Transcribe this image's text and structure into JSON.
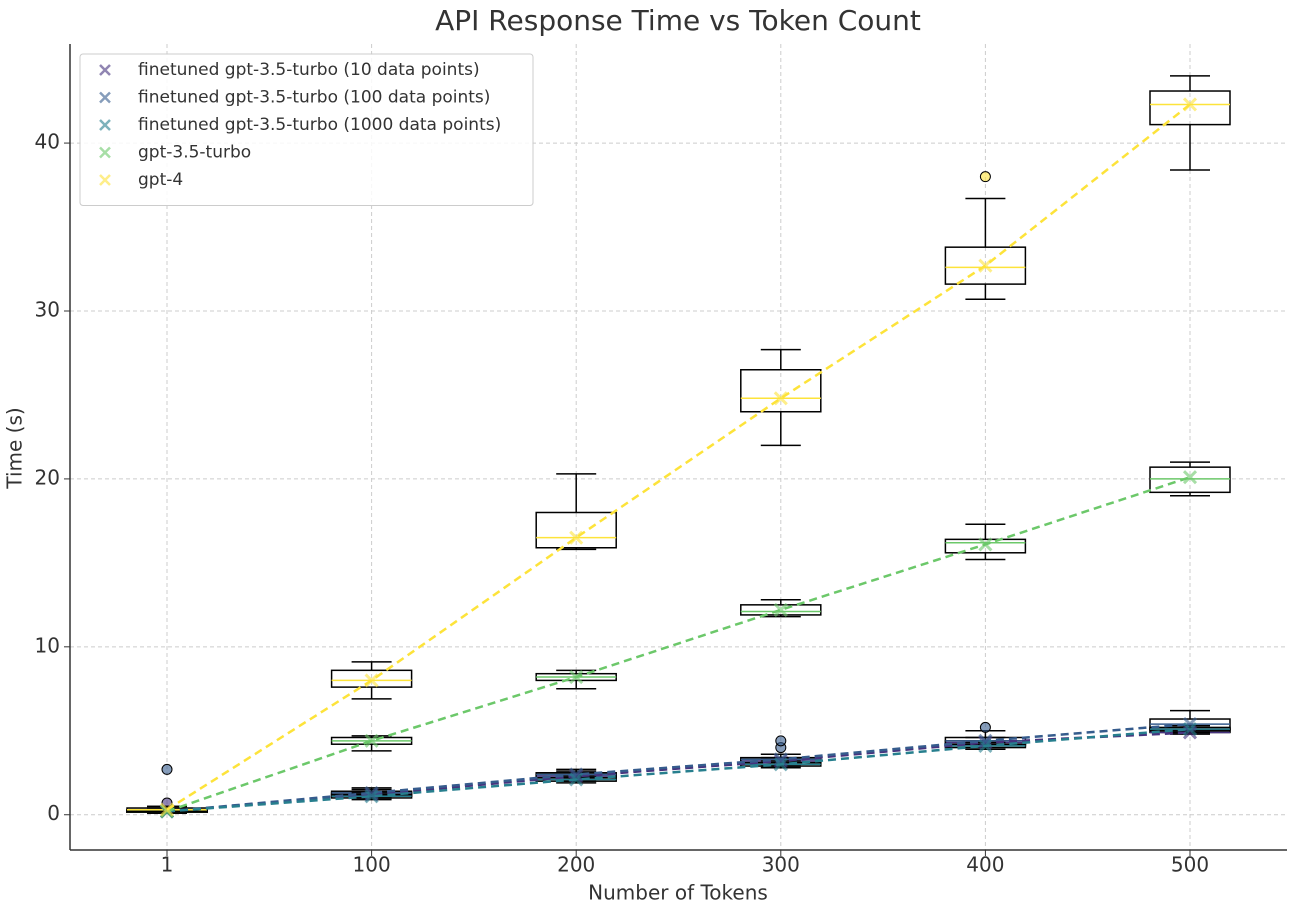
{
  "chart_data": {
    "type": "box-line",
    "title": "API Response Time vs Token Count",
    "xlabel": "Number of Tokens",
    "ylabel": "Time (s)",
    "categories": [
      "1",
      "100",
      "200",
      "300",
      "400",
      "500"
    ],
    "ylim": [
      -2.1,
      45.9
    ],
    "yticks": [
      0,
      10,
      20,
      30,
      40
    ],
    "grid": true,
    "legend": "upper left",
    "series": [
      {
        "name": "finetuned gpt-3.5-turbo (10 data points)",
        "color": "#46337e",
        "values": [
          0.2,
          1.2,
          2.3,
          3.2,
          4.3,
          4.9
        ],
        "boxes": [
          [
            0.1,
            0.15,
            0.2,
            0.25,
            0.5
          ],
          [
            1.0,
            1.1,
            1.2,
            1.3,
            1.5
          ],
          [
            2.0,
            2.2,
            2.3,
            2.4,
            2.6
          ],
          [
            2.9,
            3.1,
            3.2,
            3.3,
            3.4
          ],
          [
            3.9,
            4.1,
            4.3,
            4.4,
            4.6
          ],
          [
            4.8,
            4.9,
            4.9,
            5.1,
            5.3
          ]
        ],
        "outliers": [
          [
            0.7
          ],
          [],
          [],
          [],
          [],
          []
        ]
      },
      {
        "name": "finetuned gpt-3.5-turbo (100 data points)",
        "color": "#365c8d",
        "values": [
          0.2,
          1.3,
          2.4,
          3.3,
          4.4,
          5.4
        ],
        "boxes": [
          [
            0.1,
            0.15,
            0.2,
            0.3,
            0.4
          ],
          [
            1.0,
            1.2,
            1.3,
            1.4,
            1.6
          ],
          [
            2.1,
            2.2,
            2.4,
            2.5,
            2.7
          ],
          [
            2.9,
            3.1,
            3.3,
            3.4,
            3.6
          ],
          [
            3.9,
            4.2,
            4.4,
            4.6,
            5.0
          ],
          [
            4.9,
            5.1,
            5.4,
            5.7,
            6.2
          ]
        ],
        "outliers": [
          [
            2.7
          ],
          [],
          [],
          [
            4.0,
            4.4
          ],
          [
            5.2
          ],
          []
        ]
      },
      {
        "name": "finetuned gpt-3.5-turbo (1000 data points)",
        "color": "#277f8e",
        "values": [
          0.2,
          1.1,
          2.1,
          3.0,
          4.1,
          5.1
        ],
        "boxes": [
          [
            0.1,
            0.15,
            0.2,
            0.25,
            0.3
          ],
          [
            0.9,
            1.0,
            1.1,
            1.2,
            1.3
          ],
          [
            1.9,
            2.0,
            2.1,
            2.2,
            2.3
          ],
          [
            2.8,
            2.9,
            3.0,
            3.1,
            3.2
          ],
          [
            3.9,
            4.0,
            4.1,
            4.2,
            4.3
          ],
          [
            4.9,
            5.0,
            5.1,
            5.2,
            5.3
          ]
        ],
        "outliers": [
          [],
          [],
          [],
          [],
          [],
          []
        ]
      },
      {
        "name": "gpt-3.5-turbo",
        "color": "#6cc86a",
        "values": [
          0.2,
          4.4,
          8.2,
          12.2,
          16.1,
          20.1
        ],
        "boxes": [
          [
            0.1,
            0.15,
            0.2,
            0.25,
            0.3
          ],
          [
            3.8,
            4.2,
            4.4,
            4.6,
            4.7
          ],
          [
            7.5,
            8.0,
            8.2,
            8.4,
            8.6
          ],
          [
            11.8,
            11.9,
            12.1,
            12.5,
            12.8
          ],
          [
            15.2,
            15.6,
            16.2,
            16.4,
            17.3
          ],
          [
            19.0,
            19.2,
            20.0,
            20.7,
            21.0
          ]
        ],
        "outliers": [
          [],
          [],
          [],
          [],
          [],
          []
        ]
      },
      {
        "name": "gpt-4",
        "color": "#fde33a",
        "values": [
          0.3,
          8.0,
          16.5,
          24.8,
          32.7,
          42.3
        ],
        "boxes": [
          [
            0.1,
            0.2,
            0.3,
            0.4,
            0.5
          ],
          [
            6.9,
            7.6,
            8.0,
            8.6,
            9.1
          ],
          [
            15.8,
            15.9,
            16.5,
            18.0,
            20.3
          ],
          [
            22.0,
            24.0,
            24.8,
            26.5,
            27.7
          ],
          [
            30.7,
            31.6,
            32.6,
            33.8,
            36.7
          ],
          [
            38.4,
            41.1,
            42.3,
            43.1,
            44.0
          ]
        ],
        "outliers": [
          [],
          [],
          [],
          [],
          [
            38.0
          ],
          []
        ]
      }
    ]
  }
}
